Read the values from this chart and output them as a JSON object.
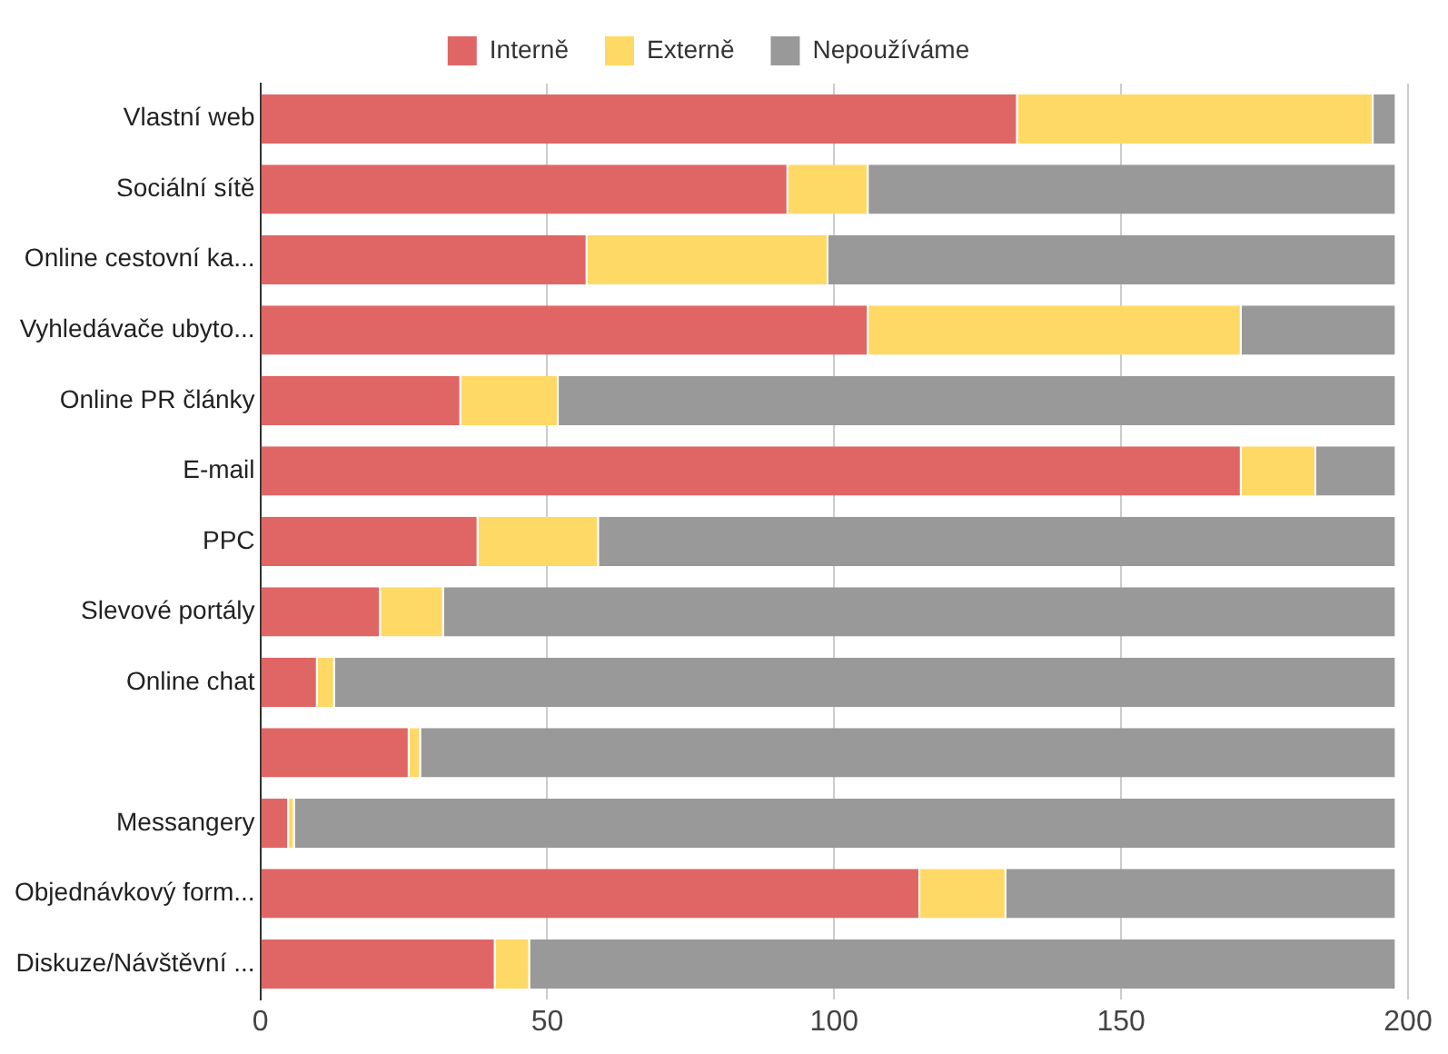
{
  "chart_data": {
    "type": "bar",
    "orientation": "horizontal",
    "stacked": true,
    "categories": [
      "Vlastní web",
      "Sociální sítě",
      "Online cestovní ka...",
      "Vyhledávače ubyto...",
      "Online PR články",
      "E-mail",
      "PPC",
      "Slevové portály",
      "Online chat",
      null,
      "Messangery",
      "Objednávkový form...",
      "Diskuze/Návštěvní ..."
    ],
    "series": [
      {
        "name": "Interně",
        "color": "#e06666",
        "values": [
          132,
          92,
          57,
          106,
          35,
          171,
          38,
          21,
          10,
          26,
          5,
          115,
          41
        ]
      },
      {
        "name": "Externě",
        "color": "#ffd966",
        "values": [
          62,
          14,
          42,
          65,
          17,
          13,
          21,
          11,
          3,
          2,
          1,
          15,
          6
        ]
      },
      {
        "name": "Nepoužíváme",
        "color": "#999999",
        "values": [
          4,
          92,
          99,
          27,
          146,
          14,
          139,
          166,
          185,
          170,
          192,
          68,
          151
        ]
      }
    ],
    "xlim": [
      0,
      200
    ],
    "xticks": [
      0,
      50,
      100,
      150,
      200
    ],
    "grid": "x",
    "legend": "top"
  }
}
